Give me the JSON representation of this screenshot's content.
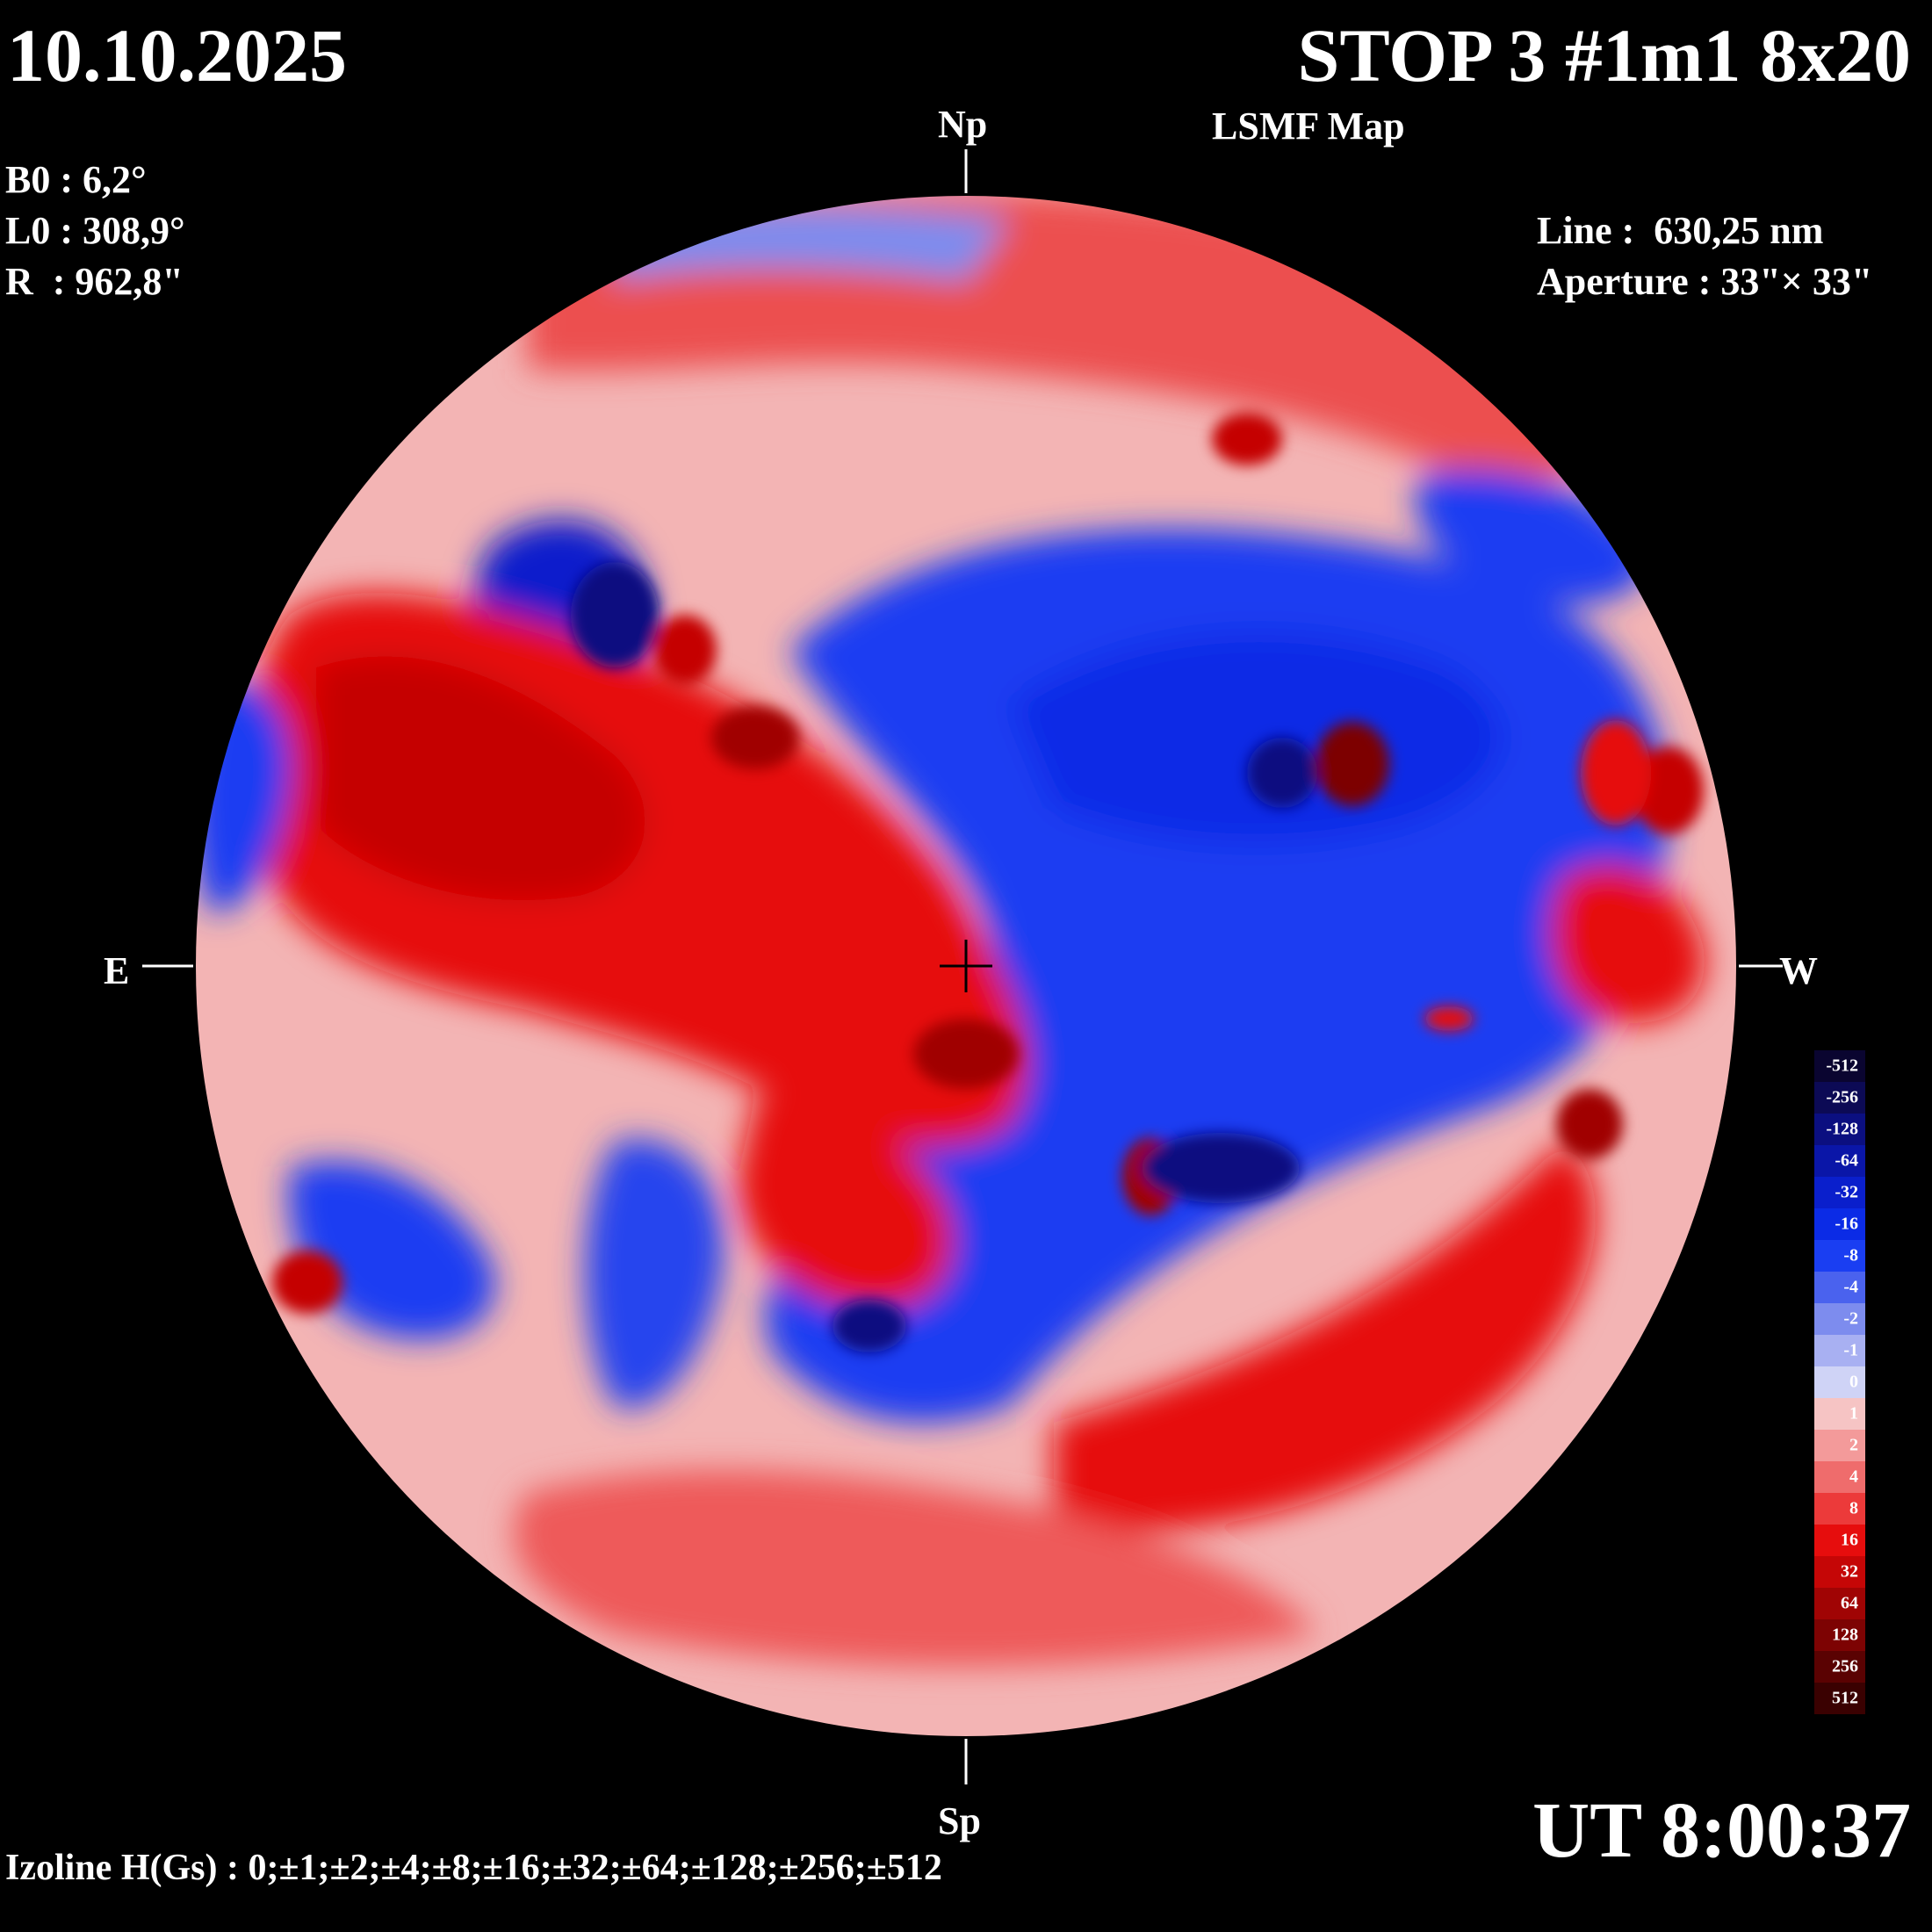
{
  "header": {
    "date": "10.10.2025",
    "title": "STOP 3 #1m1 8x20",
    "subtitle": "LSMF  Map",
    "ut": "UT 8:00:37"
  },
  "params": {
    "b0": "B0 : 6,2°",
    "l0": "L0 : 308,9°",
    "r": "R  : 962,8\""
  },
  "instrument": {
    "line": "Line :  630,25 nm",
    "aperture": "Aperture : 33\"× 33\""
  },
  "directions": {
    "north": "Np",
    "south": "Sp",
    "east": "E",
    "west": "W"
  },
  "footer": {
    "izolines": "Izoline H(Gs) : 0;±1;±2;±4;±8;±16;±32;±64;±128;±256;±512"
  },
  "colorbar": {
    "levels": [
      {
        "label": "-512",
        "color": "#0a0530"
      },
      {
        "label": "-256",
        "color": "#0c0a55"
      },
      {
        "label": "-128",
        "color": "#0b0f80"
      },
      {
        "label": "-64",
        "color": "#0a16a8"
      },
      {
        "label": "-32",
        "color": "#0a1fcc"
      },
      {
        "label": "-16",
        "color": "#0b2be6"
      },
      {
        "label": "-8",
        "color": "#1a3ef2"
      },
      {
        "label": "-4",
        "color": "#4a62ee"
      },
      {
        "label": "-2",
        "color": "#7d8cee"
      },
      {
        "label": "-1",
        "color": "#a8b0f2"
      },
      {
        "label": "0",
        "color": "#cfd3f6"
      },
      {
        "label": "1",
        "color": "#f6c4c4"
      },
      {
        "label": "2",
        "color": "#f39a9a"
      },
      {
        "label": "4",
        "color": "#ef6c6c"
      },
      {
        "label": "8",
        "color": "#ec3a3a"
      },
      {
        "label": "16",
        "color": "#e60d0d"
      },
      {
        "label": "32",
        "color": "#c50606"
      },
      {
        "label": "64",
        "color": "#a00404"
      },
      {
        "label": "128",
        "color": "#7d0303"
      },
      {
        "label": "256",
        "color": "#5a0202"
      },
      {
        "label": "512",
        "color": "#3a0101"
      }
    ]
  },
  "colors": {
    "positive": "#e81010",
    "negative": "#1030e0",
    "neutral": "#ffffff"
  }
}
